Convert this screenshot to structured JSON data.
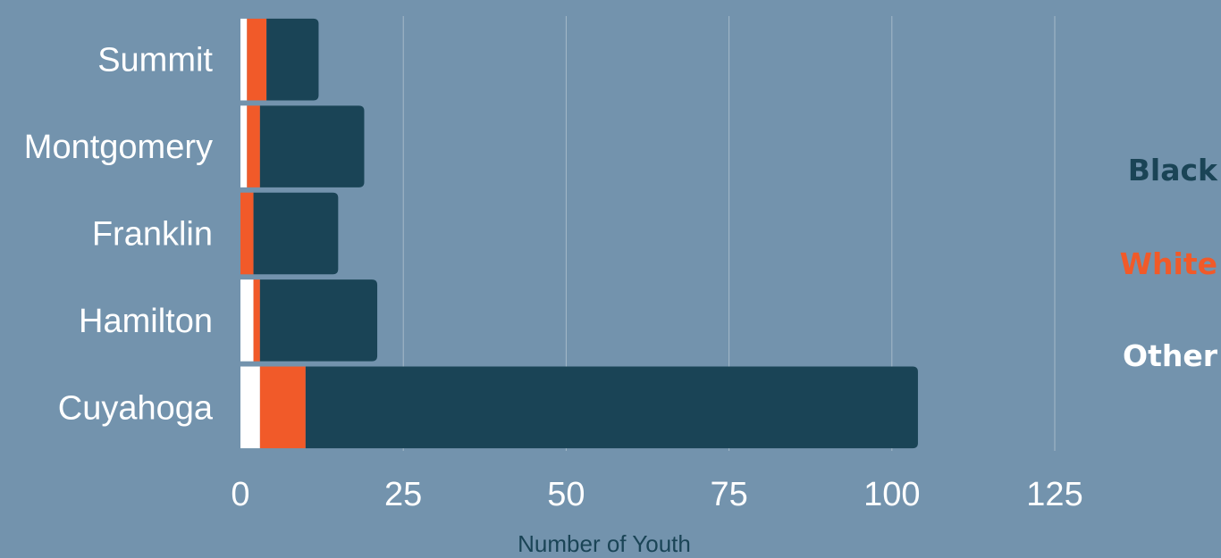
{
  "chart_data": {
    "type": "bar",
    "orientation": "horizontal",
    "stacked": true,
    "title": "",
    "xlabel": "Number of Youth",
    "ylabel": "",
    "xlim": [
      0,
      125
    ],
    "xticks": [
      0,
      25,
      50,
      75,
      100,
      125
    ],
    "categories": [
      "Summit",
      "Montgomery",
      "Franklin",
      "Hamilton",
      "Cuyahoga"
    ],
    "series": [
      {
        "name": "Other",
        "values": [
          1,
          1,
          0,
          2,
          3
        ],
        "color": "#ffffff"
      },
      {
        "name": "White",
        "values": [
          3,
          2,
          2,
          1,
          7
        ],
        "color": "#f15a29"
      },
      {
        "name": "Black",
        "values": [
          8,
          16,
          13,
          18,
          94
        ],
        "color": "#1a4456"
      }
    ],
    "grid": "vertical",
    "legend": {
      "placement": "right",
      "order": [
        "Black",
        "White",
        "Other"
      ]
    }
  },
  "colors": {
    "background": "#7393ad",
    "gridline": "#a5bac9",
    "text": "#ffffff",
    "axis_title": "#1a4456"
  }
}
